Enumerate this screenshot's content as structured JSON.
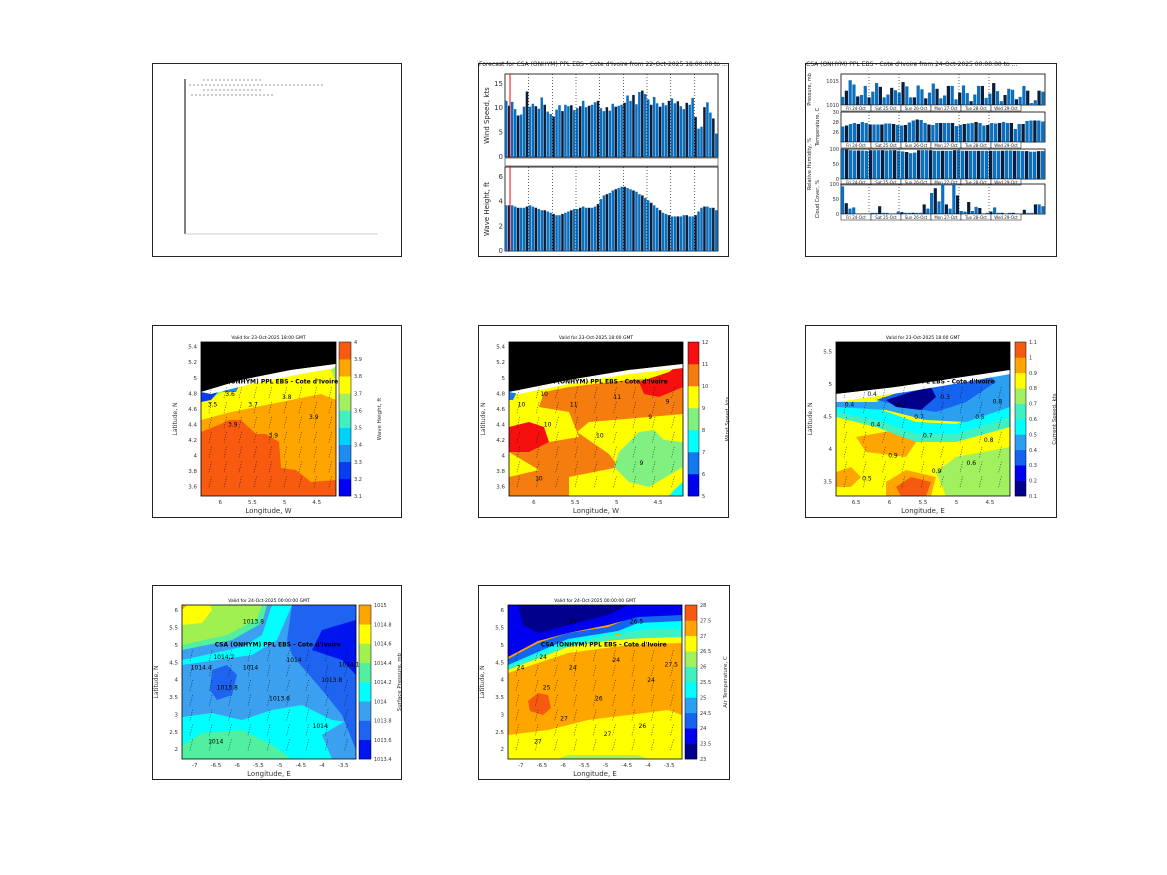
{
  "colors": {
    "bar": "#0b6fbf",
    "land": "#000000",
    "coast": "#ffffff",
    "marker": "#ff0000"
  },
  "chart_data": [
    {
      "type": "bar",
      "id": "wind-wave",
      "title": "Forecast for CSA (ONHYM) PPL EBS - Cote d'Ivoire from 22-Oct-2025 18:00:00 to ...",
      "panels": [
        {
          "ylabel": "Wind Speed, kts",
          "ylim": [
            0,
            17
          ],
          "yticks": [
            "0",
            "5",
            "10",
            "15"
          ],
          "ytick_values": [
            0,
            5,
            10,
            15
          ],
          "values": [
            11.5,
            10.5,
            11.3,
            9.8,
            8.5,
            8.7,
            10.3,
            13.4,
            10.3,
            10.9,
            10.4,
            9.9,
            12.2,
            10.7,
            9.3,
            8.8,
            8.3,
            9.7,
            10.6,
            9.4,
            10.7,
            10.4,
            10.6,
            9.6,
            10.0,
            10.4,
            11.5,
            10.2,
            10.5,
            10.7,
            11.2,
            11.5,
            10.0,
            9.4,
            10.2,
            9.5,
            10.9,
            10.3,
            10.5,
            10.7,
            11.1,
            12.6,
            11.5,
            12.7,
            10.8,
            13.3,
            13.6,
            12.9,
            11.8,
            10.7,
            12.3,
            11.0,
            10.3,
            11.1,
            10.6,
            11.5,
            12.0,
            11.0,
            11.4,
            10.4,
            9.8,
            11.1,
            10.7,
            12.1,
            8.2,
            5.8,
            6.2,
            10.2,
            11.2,
            9.1,
            7.9,
            4.8
          ]
        },
        {
          "ylabel": "Wave Height, ft",
          "ylim": [
            0,
            6.8
          ],
          "yticks": [
            "0",
            "2",
            "4",
            "6"
          ],
          "ytick_values": [
            0,
            2,
            4,
            6
          ],
          "values": [
            3.7,
            3.7,
            3.7,
            3.6,
            3.5,
            3.5,
            3.5,
            3.6,
            3.7,
            3.6,
            3.5,
            3.4,
            3.3,
            3.3,
            3.2,
            3.1,
            3.0,
            2.9,
            2.9,
            3.0,
            3.1,
            3.2,
            3.3,
            3.4,
            3.4,
            3.5,
            3.6,
            3.5,
            3.5,
            3.5,
            3.6,
            3.8,
            4.2,
            4.5,
            4.6,
            4.7,
            4.9,
            5.0,
            5.1,
            5.2,
            5.2,
            5.1,
            5.0,
            4.9,
            4.8,
            4.6,
            4.5,
            4.3,
            4.1,
            3.9,
            3.7,
            3.5,
            3.3,
            3.1,
            3.0,
            2.9,
            2.8,
            2.8,
            2.8,
            2.8,
            2.9,
            2.9,
            2.8,
            2.8,
            2.9,
            3.2,
            3.5,
            3.6,
            3.6,
            3.5,
            3.5,
            3.3
          ]
        }
      ]
    },
    {
      "type": "bar",
      "id": "met-stack",
      "title": "CSA (ONHYM) PPL EBS - Cote d'Ivoire from 24-Oct-2025 00:00:00 to ...",
      "date_labels": [
        "Fri 24-Oct",
        "Sat 25-Oct",
        "Sun 26-Oct",
        "Mon 27-Oct",
        "Tue 28-Oct",
        "Wed 29-Oct"
      ],
      "panels": [
        {
          "ylabel": "Pressure, mb",
          "ylim": [
            1010,
            1016.5
          ],
          "yticks": [
            "1015",
            "1010"
          ],
          "ytick_values": [
            1015,
            1010
          ],
          "values": [
            1011.7,
            1013,
            1015.2,
            1014.3,
            1011.8,
            1012.1,
            1014,
            1011.6,
            1012.8,
            1014.6,
            1013.8,
            1011.6,
            1012.2,
            1013.6,
            1013.1,
            1012.6,
            1014.8,
            1013.9,
            1011.6,
            1011.6,
            1014.1,
            1013.3,
            1011.4,
            1012.6,
            1014.5,
            1013.4,
            1011.4,
            1012,
            1014,
            1014,
            1011.2,
            1012.6,
            1014.1,
            1012.5,
            1010.8,
            1012.2,
            1014,
            1014,
            1011.5,
            1012.4,
            1014.6,
            1012.9,
            1010.8,
            1012.1,
            1013.4,
            1013.2,
            1011.2,
            1011.7,
            1014,
            1013,
            1010.4,
            1011,
            1013,
            1012.8
          ]
        },
        {
          "ylabel": "Temperature, C",
          "ylim": [
            24,
            30
          ],
          "yticks": [
            "30",
            "28",
            "26"
          ],
          "ytick_values": [
            30,
            28,
            26
          ],
          "values": [
            27.1,
            27.3,
            27.6,
            27.8,
            27.6,
            28,
            27.8,
            27.5,
            27.5,
            27.5,
            27.5,
            27.7,
            27.7,
            27.6,
            27.4,
            27.3,
            27.4,
            27.9,
            28.3,
            28.5,
            28.4,
            27.8,
            27.5,
            27.4,
            27.8,
            27.8,
            27.8,
            27.8,
            27.8,
            27.2,
            27.4,
            27.6,
            27.7,
            27.8,
            28,
            27.8,
            27.3,
            27.4,
            27.8,
            27.7,
            27.8,
            28,
            27.8,
            27.8,
            26.6,
            27.6,
            27.6,
            28.2,
            28.3,
            28.3,
            28.3,
            28.1
          ]
        },
        {
          "ylabel": "Relative Humidity, %",
          "ylim": [
            0,
            100
          ],
          "yticks": [
            "100",
            "50",
            "0"
          ],
          "ytick_values": [
            100,
            50,
            0
          ],
          "values": [
            98,
            98,
            96,
            95,
            95,
            95,
            94,
            96,
            96,
            96,
            96,
            95,
            96,
            96,
            94,
            92,
            90,
            86,
            88,
            96,
            96,
            96,
            96,
            94,
            94,
            94,
            94,
            94,
            96,
            96,
            94,
            94,
            94,
            94,
            94,
            94,
            94,
            94,
            94,
            94,
            94,
            95,
            95,
            94,
            94,
            93,
            93,
            91,
            91,
            93,
            93
          ]
        },
        {
          "ylabel": "Cloud Cover, %",
          "ylim": [
            0,
            100
          ],
          "yticks": [
            "100",
            "50",
            "0"
          ],
          "ytick_values": [
            100,
            50,
            0
          ],
          "values": [
            92,
            36,
            18,
            22,
            0,
            0,
            0,
            0,
            4,
            4,
            26,
            4,
            4,
            0,
            0,
            8,
            6,
            4,
            4,
            4,
            4,
            4,
            32,
            18,
            70,
            86,
            42,
            100,
            32,
            18,
            100,
            62,
            10,
            8,
            40,
            10,
            24,
            20,
            0,
            4,
            8,
            22,
            4,
            4,
            0,
            4,
            4,
            0,
            0,
            14,
            4,
            4,
            32,
            32,
            26
          ]
        }
      ]
    }
  ],
  "maps": [
    {
      "id": "wave-height",
      "title": "Valid for 23-Oct-2025 18:00 GMT",
      "xlabel": "Longitude, W",
      "ylabel": "Latitude, N",
      "cbar_label": "Wave Height, ft",
      "xticks": [
        "6",
        "5.5",
        "5",
        "4.5"
      ],
      "yticks": [
        "5.4",
        "5.2",
        "5",
        "4.8",
        "4.6",
        "4.4",
        "4.2",
        "4",
        "3.8",
        "3.6"
      ],
      "cbar_ticks": [
        "4",
        "3.9",
        "3.8",
        "3.7",
        "3.6",
        "3.5",
        "3.4",
        "3.3",
        "3.2",
        "3.1"
      ],
      "cbar_colors": [
        "#0000f5",
        "#0a3cf0",
        "#1e8cf0",
        "#00d2ff",
        "#40f0c0",
        "#a0f060",
        "#ffff00",
        "#ffa500",
        "#f85a10"
      ],
      "site_label": "CSA (ONHYM) PPL EBS - Cote d'Ivoire",
      "contour_labels": [
        "3.5",
        "3.6",
        "3.7",
        "3.8",
        "3.9",
        "3.9",
        "3.9",
        "3.9"
      ]
    },
    {
      "id": "wind-speed",
      "title": "Valid for 23-Oct-2025 18:00 GMT",
      "xlabel": "Longitude, W",
      "ylabel": "Latitude, N",
      "cbar_label": "Wind Speed, kts",
      "xticks": [
        "6",
        "5.5",
        "5",
        "4.5"
      ],
      "yticks": [
        "5.4",
        "5.2",
        "5",
        "4.8",
        "4.6",
        "4.4",
        "4.2",
        "4",
        "3.8",
        "3.6"
      ],
      "cbar_ticks": [
        "12",
        "11",
        "10",
        "9",
        "8",
        "7",
        "6",
        "5"
      ],
      "cbar_colors": [
        "#0000f0",
        "#1478f0",
        "#00ffff",
        "#80f080",
        "#ffff00",
        "#f57d10",
        "#f50f0f"
      ],
      "site_label": "CSA (ONHYM) PPL EBS - Cote d'Ivoire",
      "contour_labels": [
        "10",
        "10",
        "11",
        "11",
        "10",
        "10",
        "9",
        "10",
        "9",
        "10",
        "9"
      ]
    },
    {
      "id": "current-speed",
      "title": "Valid for 23-Oct-2025 18:00 GMT",
      "xlabel": "Longitude, E",
      "ylabel": "Latitude, N",
      "cbar_label": "Current Speed, kts",
      "xticks": [
        "6.5",
        "6",
        "5.5",
        "5",
        "4.5"
      ],
      "yticks": [
        "5.5",
        "5",
        "4.5",
        "4",
        "3.5"
      ],
      "cbar_ticks": [
        "1.1",
        "1",
        "0.9",
        "0.8",
        "0.7",
        "0.6",
        "0.5",
        "0.4",
        "0.3",
        "0.2",
        "0.1"
      ],
      "cbar_colors": [
        "#00008c",
        "#0000f0",
        "#1464f0",
        "#2ca0f0",
        "#00ffff",
        "#40f0c0",
        "#a0f060",
        "#ffff00",
        "#ffa500",
        "#f55a10"
      ],
      "site_label": "CSA (ONHYM) PPL EBS - Cote d'Ivoire",
      "contour_labels": [
        "0.4",
        "0.4",
        "0.2",
        "0.3",
        "0.4",
        "0.7",
        "0.5",
        "0.9",
        "0.6",
        "0.5",
        "0.8",
        "0.9",
        "0.9",
        "0.8",
        "0.8",
        "0.7"
      ]
    },
    {
      "id": "surface-pressure",
      "title": "Valid for 24-Oct-2025 00:00:00 GMT",
      "xlabel": "Longitude, E",
      "ylabel": "Latitude, N",
      "cbar_label": "Surface Pressure, mb",
      "xticks": [
        "-7",
        "-6.5",
        "-6",
        "-5.5",
        "-5",
        "-4.5",
        "-4",
        "-3.5"
      ],
      "yticks": [
        "6",
        "5.5",
        "5",
        "4.5",
        "4",
        "3.5",
        "3",
        "2.5",
        "2"
      ],
      "cbar_ticks": [
        "1015",
        "1014.8",
        "1014.6",
        "1014.4",
        "1014.2",
        "1014",
        "1013.8",
        "1013.6",
        "1013.4"
      ],
      "cbar_colors": [
        "#0014f0",
        "#1e64f0",
        "#3ca0f0",
        "#00ffff",
        "#50f0a0",
        "#a0f050",
        "#ffff00",
        "#ffa500"
      ],
      "site_label": "CSA (ONHYM) PPL EBS - Cote d'Ivoire",
      "contour_labels": [
        "1014.4",
        "1014.2",
        "1014",
        "1014",
        "1013.8",
        "1013.6",
        "1013.8",
        "1013.8",
        "1014",
        "1014",
        "1014.1"
      ]
    },
    {
      "id": "air-temperature",
      "title": "Valid for 24-Oct-2025 00:00:00 GMT",
      "xlabel": "Longitude, E",
      "ylabel": "Latitude, N",
      "cbar_label": "Air Temperature, C",
      "xticks": [
        "-7",
        "-6.5",
        "-6",
        "-5.5",
        "-5",
        "-4.5",
        "-4",
        "-3.5"
      ],
      "yticks": [
        "6",
        "5.5",
        "5",
        "4.5",
        "4",
        "3.5",
        "3",
        "2.5",
        "2"
      ],
      "cbar_ticks": [
        "28",
        "27.5",
        "27",
        "26.5",
        "26",
        "25.5",
        "25",
        "24.5",
        "24",
        "23.5",
        "23"
      ],
      "cbar_colors": [
        "#00008c",
        "#0000f0",
        "#1464f0",
        "#2ca0f0",
        "#00ffff",
        "#40f0c0",
        "#a0f060",
        "#ffff00",
        "#ffa500",
        "#f55a10"
      ],
      "site_label": "CSA (ONHYM) PPL EBS - Cote d'Ivoire",
      "contour_labels": [
        "24",
        "24",
        "24",
        "24",
        "25",
        "26",
        "24",
        "25",
        "26",
        "27",
        "27.5",
        "27",
        "27",
        "26.5"
      ]
    }
  ]
}
